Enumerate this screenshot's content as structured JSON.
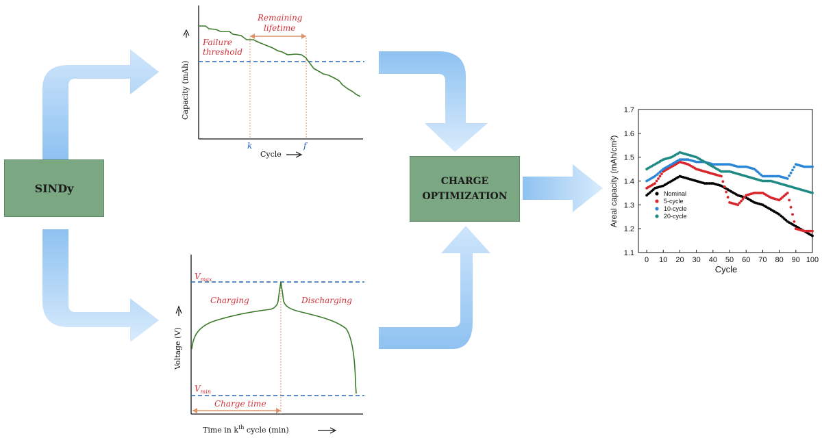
{
  "boxes": {
    "sindy": "SINDy",
    "charge_line1": "CHARGE",
    "charge_line2": "OPTIMIZATION"
  },
  "capacity_plot": {
    "ylabel": "Capacity (mAh)",
    "xlabel": "Cycle",
    "remaining_line1": "Remaining",
    "remaining_line2": "lifetime",
    "failure_line1": "Failure",
    "failure_line2": "threshold",
    "k_label": "k",
    "f_label": "f"
  },
  "voltage_plot": {
    "ylabel": "Voltage (V)",
    "xlabel_pre": "Time in k",
    "xlabel_sup": "th",
    "xlabel_post": " cycle (min)",
    "vmax": "V",
    "vmax_sub": "max",
    "vmin": "V",
    "vmin_sub": "min",
    "charging": "Charging",
    "discharging": "Discharging",
    "charge_time": "Charge time"
  },
  "colors": {
    "arrow": "#9cc9f2",
    "box": "#7ba883",
    "curve": "#3a7a2a",
    "red_text": "#d0323a",
    "blue_dash": "#2463b8",
    "orange": "#e0906a"
  },
  "chart_data": {
    "type": "scatter",
    "xlabel": "Cycle",
    "ylabel": "Areal capacity (mAh/cm²)",
    "xlim": [
      -5,
      100
    ],
    "ylim": [
      1.1,
      1.7
    ],
    "xticks": [
      0,
      10,
      20,
      30,
      40,
      50,
      60,
      70,
      80,
      90,
      100
    ],
    "yticks": [
      1.1,
      1.2,
      1.3,
      1.4,
      1.5,
      1.6,
      1.7
    ],
    "legend_position": "bottom-left",
    "series": [
      {
        "name": "Nominal",
        "color": "#000000",
        "x": [
          0,
          5,
          10,
          15,
          20,
          25,
          30,
          35,
          40,
          45,
          50,
          55,
          60,
          65,
          70,
          75,
          80,
          85,
          90,
          95,
          100
        ],
        "y": [
          1.34,
          1.37,
          1.38,
          1.4,
          1.42,
          1.41,
          1.4,
          1.39,
          1.39,
          1.38,
          1.36,
          1.34,
          1.33,
          1.31,
          1.3,
          1.28,
          1.26,
          1.23,
          1.21,
          1.19,
          1.17
        ]
      },
      {
        "name": "5-cycle",
        "color": "#d9262c",
        "x": [
          0,
          5,
          10,
          15,
          20,
          25,
          30,
          35,
          40,
          45,
          50,
          55,
          60,
          65,
          70,
          75,
          80,
          85,
          90,
          95,
          100
        ],
        "y": [
          1.37,
          1.39,
          1.44,
          1.46,
          1.48,
          1.47,
          1.45,
          1.44,
          1.43,
          1.42,
          1.31,
          1.3,
          1.34,
          1.35,
          1.35,
          1.33,
          1.32,
          1.35,
          1.2,
          1.19,
          1.19
        ]
      },
      {
        "name": "10-cycle",
        "color": "#2b86d6",
        "x": [
          0,
          5,
          10,
          15,
          20,
          25,
          30,
          35,
          40,
          45,
          50,
          55,
          60,
          65,
          70,
          75,
          80,
          85,
          90,
          95,
          100
        ],
        "y": [
          1.4,
          1.42,
          1.45,
          1.47,
          1.49,
          1.49,
          1.48,
          1.48,
          1.47,
          1.47,
          1.47,
          1.46,
          1.46,
          1.45,
          1.42,
          1.42,
          1.42,
          1.41,
          1.47,
          1.46,
          1.46
        ]
      },
      {
        "name": "20-cycle",
        "color": "#1f8a84",
        "x": [
          0,
          5,
          10,
          15,
          20,
          25,
          30,
          35,
          40,
          45,
          50,
          55,
          60,
          65,
          70,
          75,
          80,
          85,
          90,
          95,
          100
        ],
        "y": [
          1.45,
          1.47,
          1.49,
          1.5,
          1.52,
          1.51,
          1.5,
          1.48,
          1.46,
          1.44,
          1.44,
          1.43,
          1.42,
          1.41,
          1.4,
          1.4,
          1.39,
          1.38,
          1.37,
          1.36,
          1.35
        ]
      }
    ]
  }
}
